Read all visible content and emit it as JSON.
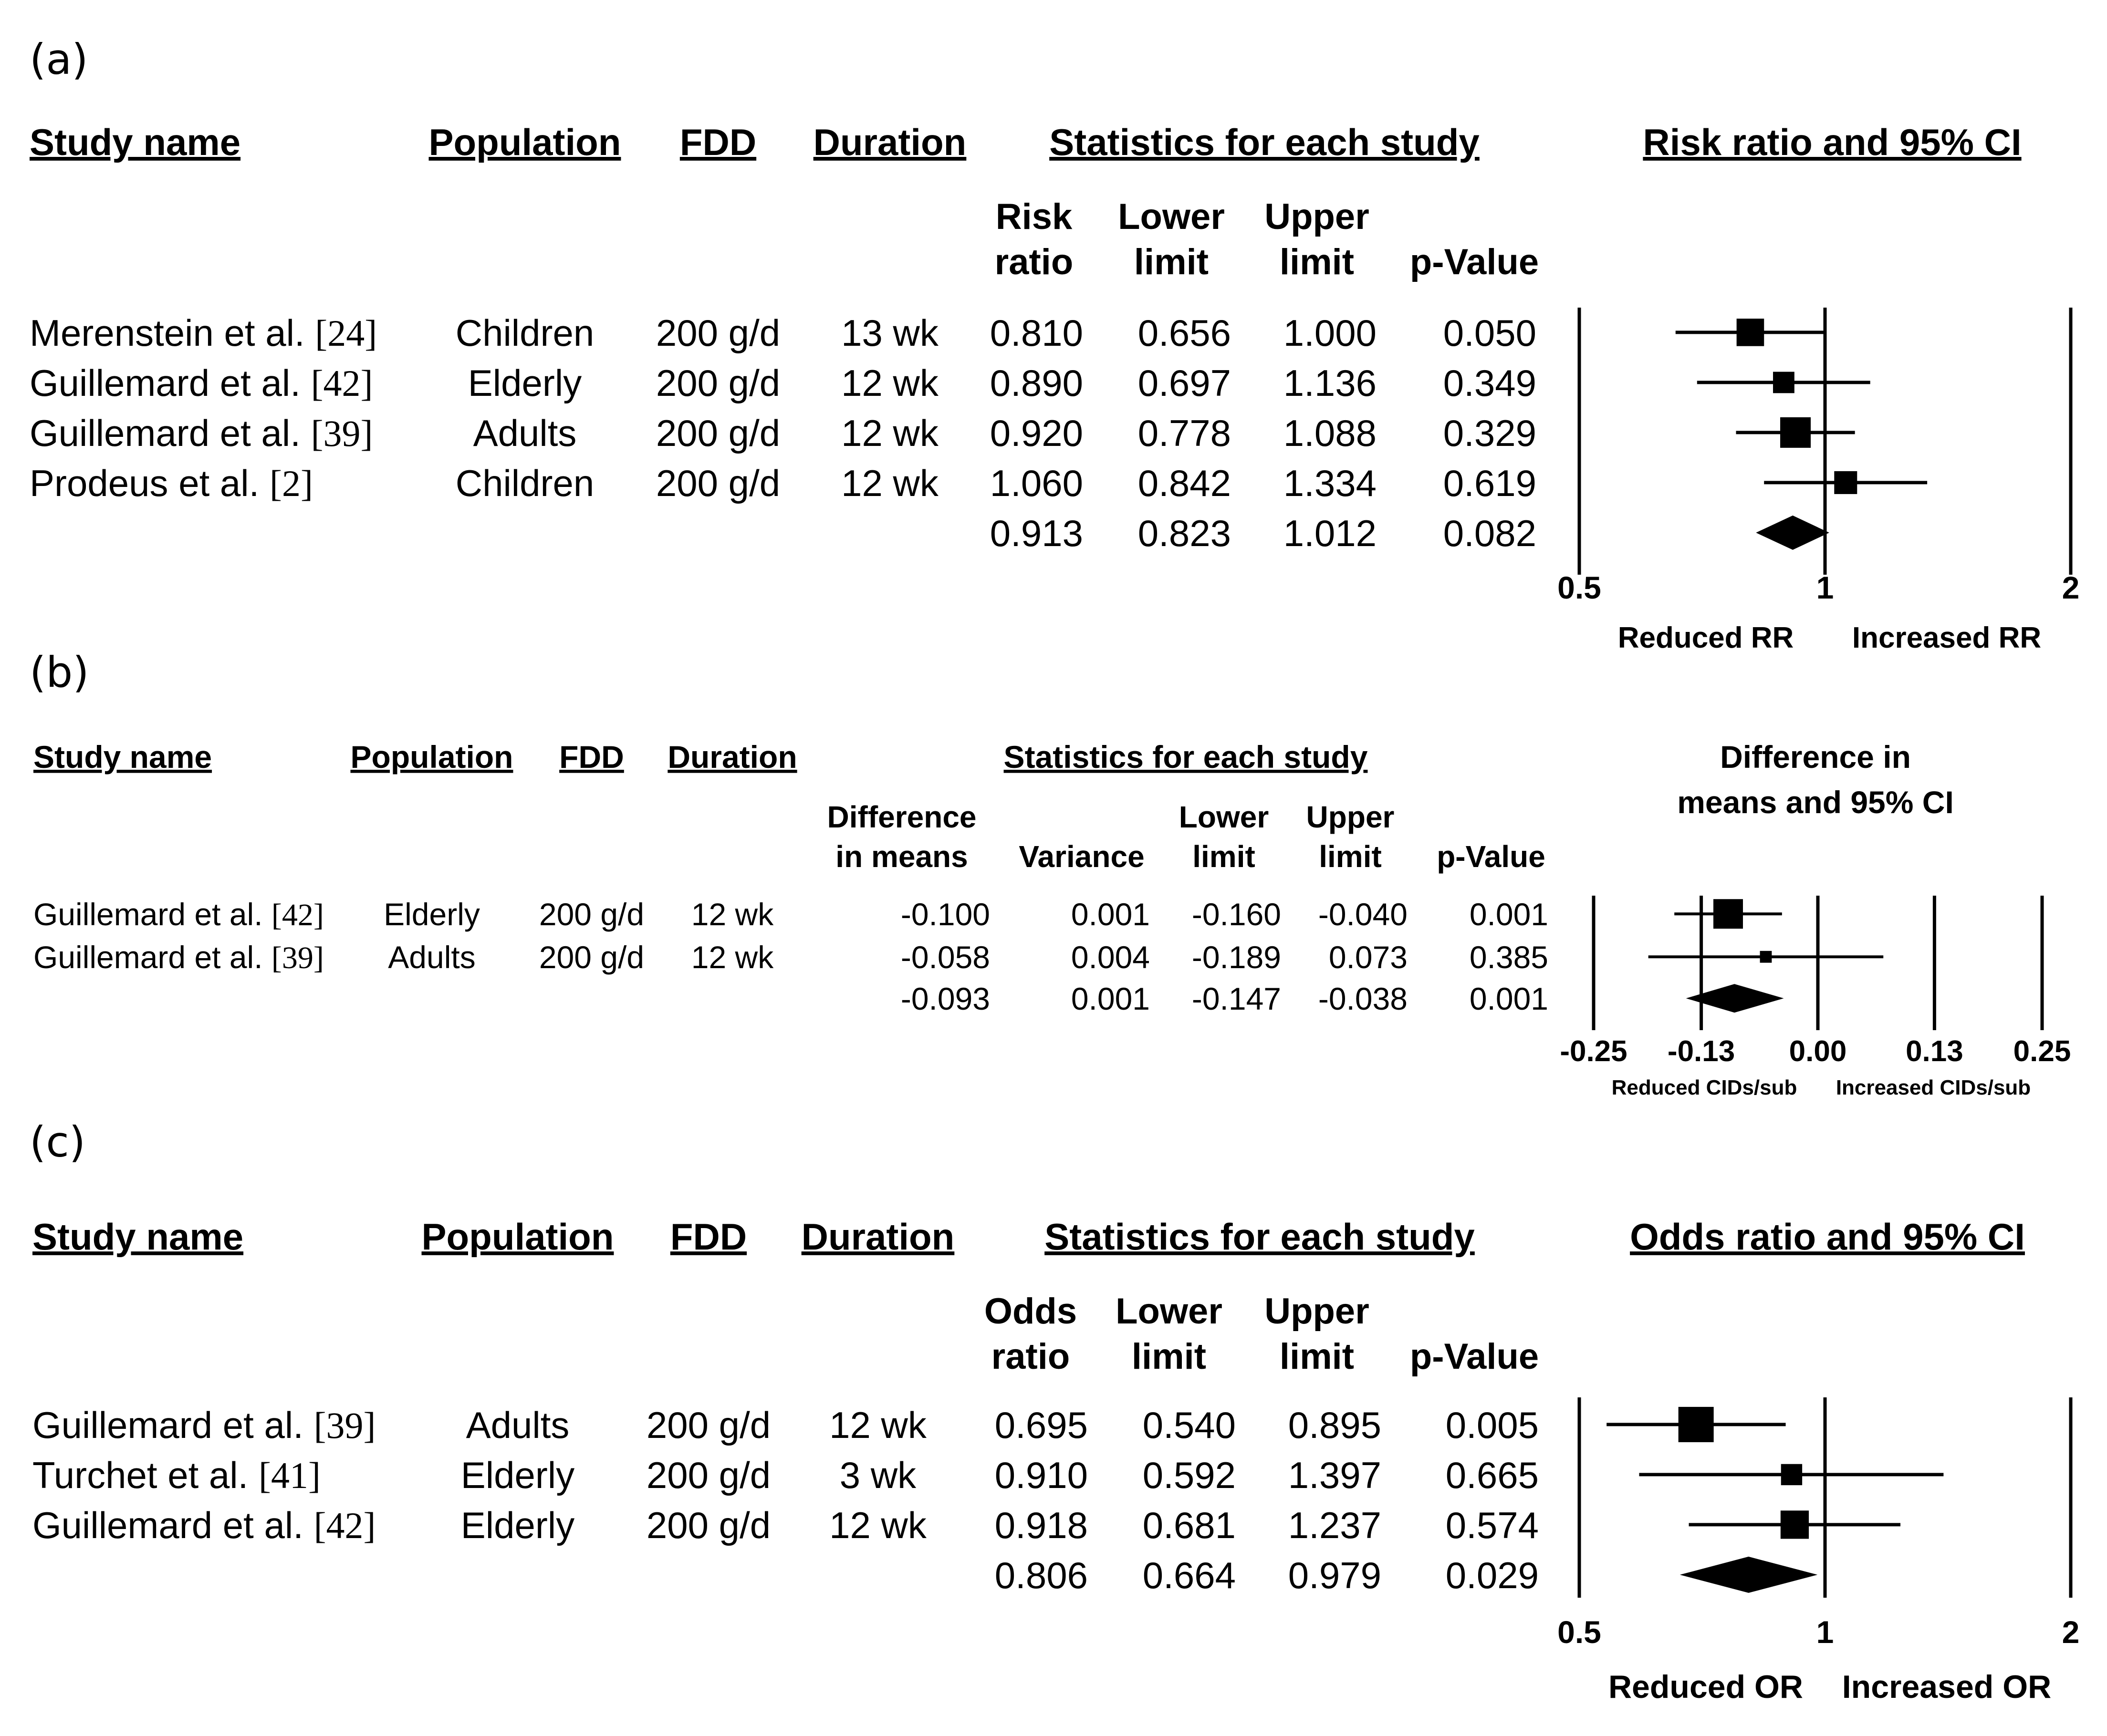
{
  "chart_data": [
    {
      "type": "forest",
      "panel_label": "(a)",
      "measure": "Risk ratio",
      "headers": {
        "study": "Study name",
        "population": "Population",
        "fdd": "FDD",
        "duration": "Duration",
        "stats": "Statistics for each study",
        "plot_title": [
          "Risk ratio and 95% CI"
        ]
      },
      "stat_columns": [
        [
          "Risk",
          "ratio"
        ],
        [
          "Lower",
          "limit"
        ],
        [
          "Upper",
          "limit"
        ],
        [
          "",
          "p-Value"
        ]
      ],
      "scale": "log",
      "xlim": [
        0.5,
        2
      ],
      "ref_value": 1,
      "ticks": [
        0.5,
        1,
        2
      ],
      "tick_labels": [
        "0.5",
        "1",
        "2"
      ],
      "direction_labels": [
        "Reduced RR",
        "Increased RR"
      ],
      "studies": [
        {
          "name": "Merenstein et al.",
          "ref": "[24]",
          "population": "Children",
          "fdd": "200 g/d",
          "duration": "13 wk",
          "stats": [
            "0.810",
            "0.656",
            "1.000",
            "0.050"
          ],
          "est": 0.81,
          "lower": 0.656,
          "upper": 1.0,
          "weight": 0.9
        },
        {
          "name": "Guillemard et al.",
          "ref": "[42]",
          "population": "Elderly",
          "fdd": "200 g/d",
          "duration": "12 wk",
          "stats": [
            "0.890",
            "0.697",
            "1.136",
            "0.349"
          ],
          "est": 0.89,
          "lower": 0.697,
          "upper": 1.136,
          "weight": 0.7
        },
        {
          "name": "Guillemard et al.",
          "ref": "[39]",
          "population": "Adults",
          "fdd": "200 g/d",
          "duration": "12 wk",
          "stats": [
            "0.920",
            "0.778",
            "1.088",
            "0.329"
          ],
          "est": 0.92,
          "lower": 0.778,
          "upper": 1.088,
          "weight": 1.0
        },
        {
          "name": "Prodeus et al.",
          "ref": "[2]",
          "population": "Children",
          "fdd": "200 g/d",
          "duration": "12 wk",
          "stats": [
            "1.060",
            "0.842",
            "1.334",
            "0.619"
          ],
          "est": 1.06,
          "lower": 0.842,
          "upper": 1.334,
          "weight": 0.75
        }
      ],
      "summary": {
        "stats": [
          "0.913",
          "0.823",
          "1.012",
          "0.082"
        ],
        "est": 0.913,
        "lower": 0.823,
        "upper": 1.012
      }
    },
    {
      "type": "forest",
      "panel_label": "(b)",
      "measure": "Difference in means",
      "headers": {
        "study": "Study name",
        "population": "Population",
        "fdd": "FDD",
        "duration": "Duration",
        "stats": "Statistics for each study",
        "plot_title": [
          "Difference in",
          "means and 95% CI"
        ]
      },
      "stat_columns": [
        [
          "Difference",
          "in means"
        ],
        [
          "",
          "Variance"
        ],
        [
          "Lower",
          "limit"
        ],
        [
          "Upper",
          "limit"
        ],
        [
          "",
          "p-Value"
        ]
      ],
      "scale": "linear",
      "xlim": [
        -0.25,
        0.25
      ],
      "ref_value": 0,
      "ticks": [
        -0.25,
        -0.13,
        0.0,
        0.13,
        0.25
      ],
      "tick_labels": [
        "-0.25",
        "-0.13",
        "0.00",
        "0.13",
        "0.25"
      ],
      "direction_labels": [
        "Reduced CIDs/sub",
        "Increased CIDs/sub"
      ],
      "studies": [
        {
          "name": "Guillemard et al.",
          "ref": "[42]",
          "population": "Elderly",
          "fdd": "200 g/d",
          "duration": "12 wk",
          "stats": [
            "-0.100",
            "0.001",
            "-0.160",
            "-0.040",
            "0.001"
          ],
          "est": -0.1,
          "lower": -0.16,
          "upper": -0.04,
          "weight": 1.0
        },
        {
          "name": "Guillemard et al.",
          "ref": "[39]",
          "population": "Adults",
          "fdd": "200 g/d",
          "duration": "12 wk",
          "stats": [
            "-0.058",
            "0.004",
            "-0.189",
            "0.073",
            "0.385"
          ],
          "est": -0.058,
          "lower": -0.189,
          "upper": 0.073,
          "weight": 0.4
        }
      ],
      "summary": {
        "stats": [
          "-0.093",
          "0.001",
          "-0.147",
          "-0.038",
          "0.001"
        ],
        "est": -0.093,
        "lower": -0.147,
        "upper": -0.038
      }
    },
    {
      "type": "forest",
      "panel_label": "(c)",
      "measure": "Odds ratio",
      "headers": {
        "study": "Study name",
        "population": "Population",
        "fdd": "FDD",
        "duration": "Duration",
        "stats": "Statistics for each study",
        "plot_title": [
          "Odds ratio and 95% CI"
        ]
      },
      "stat_columns": [
        [
          "Odds",
          "ratio"
        ],
        [
          "Lower",
          "limit"
        ],
        [
          "Upper",
          "limit"
        ],
        [
          "",
          "p-Value"
        ]
      ],
      "scale": "log",
      "xlim": [
        0.5,
        2
      ],
      "ref_value": 1,
      "ticks": [
        0.5,
        1,
        2
      ],
      "tick_labels": [
        "0.5",
        "1",
        "2"
      ],
      "direction_labels": [
        "Reduced OR",
        "Increased OR"
      ],
      "studies": [
        {
          "name": "Guillemard et al.",
          "ref": "[39]",
          "population": "Adults",
          "fdd": "200 g/d",
          "duration": "12 wk",
          "stats": [
            "0.695",
            "0.540",
            "0.895",
            "0.005"
          ],
          "est": 0.695,
          "lower": 0.54,
          "upper": 0.895,
          "weight": 1.0
        },
        {
          "name": "Turchet et al.",
          "ref": "[41]",
          "population": "Elderly",
          "fdd": "200 g/d",
          "duration": "3 wk",
          "stats": [
            "0.910",
            "0.592",
            "1.397",
            "0.665"
          ],
          "est": 0.91,
          "lower": 0.592,
          "upper": 1.397,
          "weight": 0.6
        },
        {
          "name": "Guillemard et al.",
          "ref": "[42]",
          "population": "Elderly",
          "fdd": "200 g/d",
          "duration": "12 wk",
          "stats": [
            "0.918",
            "0.681",
            "1.237",
            "0.574"
          ],
          "est": 0.918,
          "lower": 0.681,
          "upper": 1.237,
          "weight": 0.8
        }
      ],
      "summary": {
        "stats": [
          "0.806",
          "0.664",
          "0.979",
          "0.029"
        ],
        "est": 0.806,
        "lower": 0.664,
        "upper": 0.979
      }
    }
  ]
}
